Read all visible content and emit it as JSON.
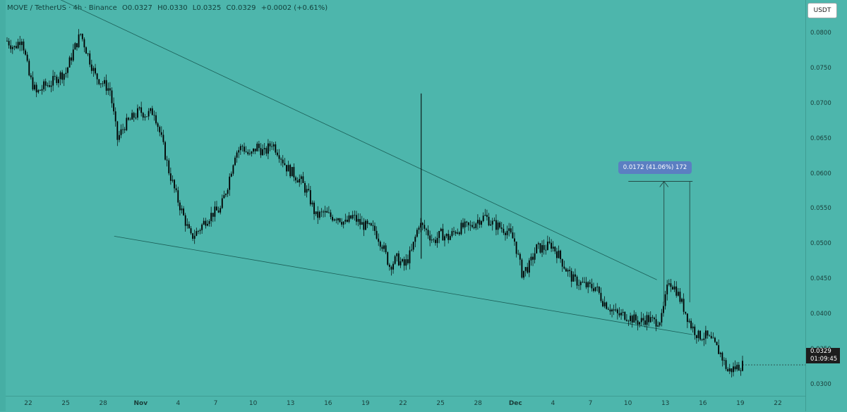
{
  "header": {
    "symbol": "MOVE / TetherUS · 4h · Binance",
    "open": "O0.0327",
    "high": "H0.0330",
    "low": "L0.0325",
    "close": "C0.0329",
    "change": "+0.0002 (+0.61%)"
  },
  "unit_button": "USDT",
  "current_price": {
    "price": "0.0329",
    "countdown": "01:09:45"
  },
  "measure_label": "0.0172 (41.06%) 172",
  "colors": {
    "background": "#4db6ac",
    "candle": "#000000",
    "trendline": "#1b5e57"
  },
  "chart_data": {
    "type": "candlestick",
    "y_range": [
      0.0295,
      0.084
    ],
    "y_ticks": [
      "0.0800",
      "0.0750",
      "0.0700",
      "0.0650",
      "0.0600",
      "0.0550",
      "0.0500",
      "0.0450",
      "0.0400",
      "0.0350",
      "0.0300"
    ],
    "x_ticks": [
      {
        "label": "22",
        "bold": false
      },
      {
        "label": "25",
        "bold": false
      },
      {
        "label": "28",
        "bold": false
      },
      {
        "label": "Nov",
        "bold": true
      },
      {
        "label": "4",
        "bold": false
      },
      {
        "label": "7",
        "bold": false
      },
      {
        "label": "10",
        "bold": false
      },
      {
        "label": "13",
        "bold": false
      },
      {
        "label": "16",
        "bold": false
      },
      {
        "label": "19",
        "bold": false
      },
      {
        "label": "22",
        "bold": false
      },
      {
        "label": "25",
        "bold": false
      },
      {
        "label": "28",
        "bold": false
      },
      {
        "label": "Dec",
        "bold": true
      },
      {
        "label": "4",
        "bold": false
      },
      {
        "label": "7",
        "bold": false
      },
      {
        "label": "10",
        "bold": false
      },
      {
        "label": "13",
        "bold": false
      },
      {
        "label": "16",
        "bold": false
      },
      {
        "label": "19",
        "bold": false
      },
      {
        "label": "22",
        "bold": false
      }
    ],
    "price_path": [
      [
        0,
        0.079
      ],
      [
        2,
        0.078
      ],
      [
        3,
        0.0795
      ],
      [
        5,
        0.074
      ],
      [
        6,
        0.0715
      ],
      [
        7,
        0.0725
      ],
      [
        9,
        0.073
      ],
      [
        10,
        0.074
      ],
      [
        11,
        0.0745
      ],
      [
        12,
        0.0775
      ],
      [
        13,
        0.08
      ],
      [
        14,
        0.077
      ],
      [
        15,
        0.074
      ],
      [
        16,
        0.073
      ],
      [
        17,
        0.072
      ],
      [
        18,
        0.065
      ],
      [
        19,
        0.067
      ],
      [
        20,
        0.068
      ],
      [
        21,
        0.069
      ],
      [
        22,
        0.0685
      ],
      [
        23,
        0.069
      ],
      [
        24,
        0.065
      ],
      [
        25,
        0.0605
      ],
      [
        26,
        0.057
      ],
      [
        27,
        0.054
      ],
      [
        28,
        0.051
      ],
      [
        29,
        0.052
      ],
      [
        30,
        0.0535
      ],
      [
        31,
        0.0545
      ],
      [
        32,
        0.055
      ],
      [
        33,
        0.0585
      ],
      [
        34,
        0.063
      ],
      [
        35,
        0.064
      ],
      [
        36,
        0.0625
      ],
      [
        37,
        0.064
      ],
      [
        38,
        0.063
      ],
      [
        39,
        0.0645
      ],
      [
        40,
        0.063
      ],
      [
        41,
        0.061
      ],
      [
        42,
        0.06
      ],
      [
        43,
        0.059
      ],
      [
        44,
        0.057
      ],
      [
        45,
        0.054
      ],
      [
        46,
        0.0545
      ],
      [
        47,
        0.054
      ],
      [
        48,
        0.054
      ],
      [
        49,
        0.053
      ],
      [
        50,
        0.054
      ],
      [
        51,
        0.053
      ],
      [
        52,
        0.0525
      ],
      [
        53,
        0.052
      ],
      [
        54,
        0.05
      ],
      [
        55,
        0.047
      ],
      [
        56,
        0.048
      ],
      [
        57,
        0.047
      ],
      [
        58,
        0.049
      ],
      [
        59,
        0.053
      ],
      [
        60,
        0.052
      ],
      [
        61,
        0.0505
      ],
      [
        62,
        0.0515
      ],
      [
        63,
        0.051
      ],
      [
        64,
        0.052
      ],
      [
        65,
        0.0525
      ],
      [
        66,
        0.0525
      ],
      [
        67,
        0.0535
      ],
      [
        68,
        0.054
      ],
      [
        69,
        0.053
      ],
      [
        70,
        0.0525
      ],
      [
        71,
        0.052
      ],
      [
        72,
        0.0505
      ],
      [
        73,
        0.046
      ],
      [
        74,
        0.047
      ],
      [
        75,
        0.0495
      ],
      [
        76,
        0.0495
      ],
      [
        77,
        0.05
      ],
      [
        78,
        0.0485
      ],
      [
        79,
        0.0465
      ],
      [
        80,
        0.045
      ],
      [
        81,
        0.0445
      ],
      [
        82,
        0.044
      ],
      [
        83,
        0.044
      ],
      [
        84,
        0.042
      ],
      [
        85,
        0.041
      ],
      [
        86,
        0.04
      ],
      [
        87,
        0.04
      ],
      [
        88,
        0.0395
      ],
      [
        89,
        0.039
      ],
      [
        90,
        0.0395
      ],
      [
        91,
        0.039
      ],
      [
        92,
        0.0395
      ],
      [
        93,
        0.045
      ],
      [
        94,
        0.0435
      ],
      [
        95,
        0.041
      ],
      [
        96,
        0.0385
      ],
      [
        97,
        0.037
      ],
      [
        98,
        0.037
      ],
      [
        99,
        0.036
      ],
      [
        100,
        0.0345
      ],
      [
        101,
        0.032
      ],
      [
        102,
        0.0325
      ],
      [
        103,
        0.0329
      ]
    ],
    "spike": {
      "index": 58,
      "high": 0.0715
    },
    "trendlines": [
      {
        "from": [
          4,
          0.0865
        ],
        "to": [
          91,
          0.045
        ]
      },
      {
        "from": [
          15,
          0.0512
        ],
        "to": [
          96,
          0.0372
        ]
      }
    ],
    "measure": {
      "from_index": 88,
      "to_index": 96,
      "base": 0.0418,
      "top": 0.059
    }
  }
}
